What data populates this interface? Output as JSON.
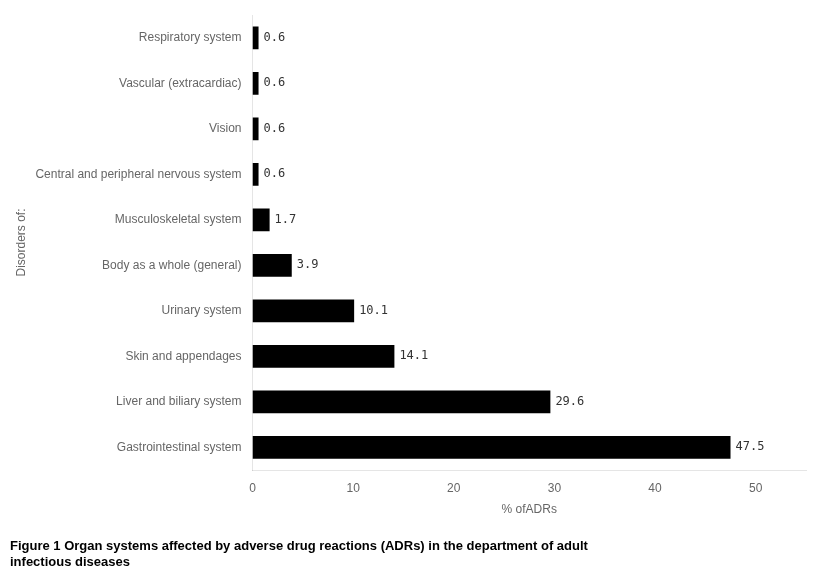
{
  "chart_data": {
    "type": "bar",
    "orientation": "horizontal",
    "title": "Figure 1 Organ systems affected by adverse drug reactions (ADRs) in the department of adult\ninfectious diseases",
    "xlabel": "% ofADRs",
    "ylabel": "Disorders of:",
    "categories": [
      "Gastrointestinal system",
      "Liver and biliary system",
      "Skin and appendages",
      "Urinary system",
      "Body as a whole (general)",
      "Musculoskeletal system",
      "Central and peripheral nervous system",
      "Vision",
      "Vascular (extracardiac)",
      "Respiratory system"
    ],
    "values": [
      47.5,
      29.6,
      14.1,
      10.1,
      3.9,
      1.7,
      0.6,
      0.6,
      0.6,
      0.6
    ],
    "color": "#000000",
    "xlim": [
      0,
      55
    ],
    "xticks": [
      0,
      10,
      20,
      30,
      40,
      50
    ],
    "grid": false,
    "data_labels": true
  }
}
